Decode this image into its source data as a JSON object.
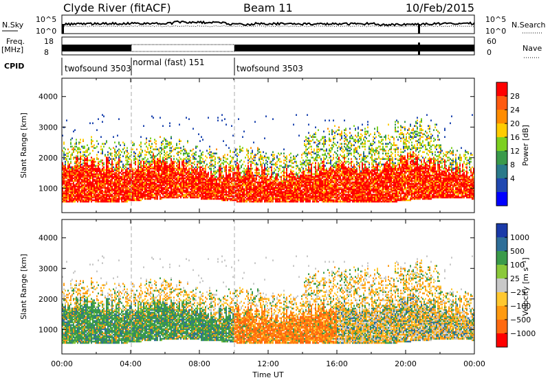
{
  "header": {
    "title": "Clyde River (fitACF)",
    "beam": "Beam 11",
    "date": "10/Feb/2015"
  },
  "status_panel": {
    "nsky_label": "N.Sky",
    "nsky_ticks": [
      "10^5",
      "10^0"
    ],
    "nsearch_ticks": [
      "10^5",
      "10^0"
    ],
    "nsearch_label": "N.Search",
    "freq_label_1": "Freq.",
    "freq_label_2": "[MHz]",
    "freq_ticks": [
      "18",
      "8"
    ],
    "nave_ticks": [
      "60",
      "0"
    ],
    "nave_label": "Nave",
    "cpid_label": "CPID",
    "cpid_segments": [
      {
        "label": "twofsound 3503",
        "start_hour": 0,
        "end_hour": 4
      },
      {
        "label": "normal (fast) 151",
        "start_hour": 4,
        "end_hour": 10
      },
      {
        "label": "twofsound 3503",
        "start_hour": 10,
        "end_hour": 24
      }
    ]
  },
  "chart_data": [
    {
      "type": "heatmap",
      "name": "power-panel",
      "ylabel": "Slant Range [km]",
      "ylim": [
        200,
        4600
      ],
      "yticks": [
        1000,
        2000,
        3000,
        4000
      ],
      "xlim": [
        0,
        24
      ],
      "colorbar": {
        "label": "Power [dB]",
        "ticks": [
          "28",
          "24",
          "20",
          "16",
          "12",
          "8",
          "4"
        ],
        "colors": [
          "#ff0000",
          "#ff5a10",
          "#ff8c00",
          "#ffcc00",
          "#7cd020",
          "#3a9a4a",
          "#2a7a8a",
          "#2048b0",
          "#0000ff"
        ]
      }
    },
    {
      "type": "heatmap",
      "name": "velocity-panel",
      "ylabel": "Slant Range [km]",
      "ylim": [
        200,
        4600
      ],
      "yticks": [
        1000,
        2000,
        3000,
        4000
      ],
      "xlim": [
        0,
        24
      ],
      "xlabel": "Time UT",
      "xticks": [
        "00:00",
        "04:00",
        "08:00",
        "12:00",
        "16:00",
        "20:00",
        "00:00"
      ],
      "colorbar": {
        "label": "Velocity [m s⁻¹]",
        "ticks": [
          "1000",
          "500",
          "100",
          "25",
          "−25",
          "−100",
          "−500",
          "−1000"
        ],
        "colors": [
          "#1a3aa8",
          "#2e6e98",
          "#3a9a4a",
          "#8ac83a",
          "#c8c8c8",
          "#ffc830",
          "#ff9a10",
          "#ff6a10",
          "#ff0000"
        ]
      }
    }
  ]
}
